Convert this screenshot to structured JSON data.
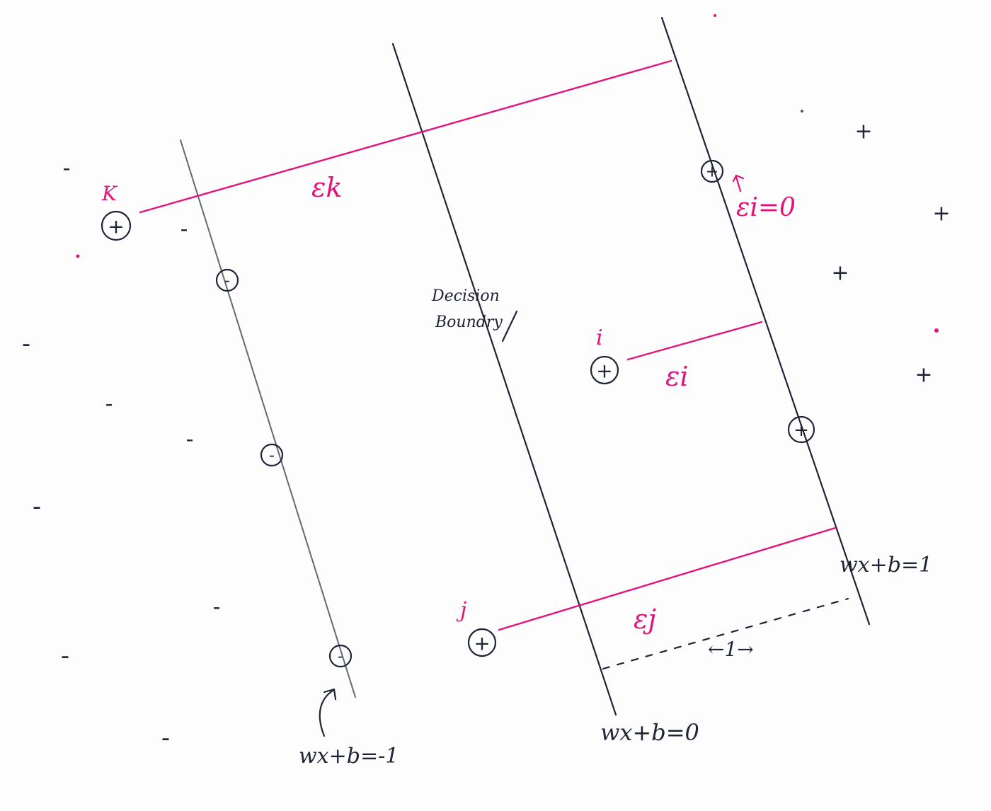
{
  "labels": {
    "decision_boundary_line1": "Decision",
    "decision_boundary_line2": "Boundry",
    "eq_neg": "wx+b=-1",
    "eq_zero": "wx+b=0",
    "eq_pos": "wx+b=1",
    "margin_width": "←1→"
  },
  "points": {
    "k_label": "K",
    "i_label": "i",
    "j_label": "j"
  },
  "slack": {
    "k": "εk",
    "i": "εi",
    "j": "εj",
    "zero": "εi=0"
  },
  "symbols": {
    "plus": "+",
    "minus": "-"
  },
  "colors": {
    "ink": "#1f2336",
    "slack": "#e4137c",
    "margin_line": "#5f6b72"
  }
}
